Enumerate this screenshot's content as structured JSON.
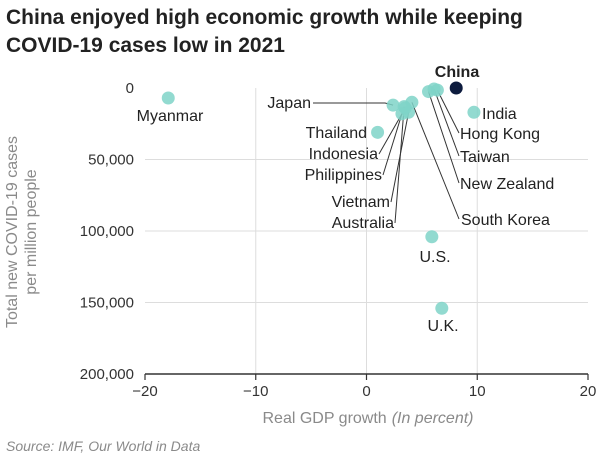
{
  "header": {
    "title_line1": "China enjoyed high economic growth while keeping",
    "title_line2": "COVID-19 cases low in 2021"
  },
  "footer": {
    "source": "Source: IMF, Our World in Data"
  },
  "chart_data": {
    "type": "scatter",
    "title": "China enjoyed high economic growth while keeping COVID-19 cases low in 2021",
    "xlabel": "Real GDP growth",
    "xlabel_note": "(In percent)",
    "ylabel_line1": "Total new COVID-19 cases",
    "ylabel_line2": "per million people",
    "xlim": [
      -20,
      20
    ],
    "ylim": [
      0,
      200000
    ],
    "y_inverted": true,
    "x_ticks": [
      -20,
      -10,
      0,
      10,
      20
    ],
    "x_tick_labels": [
      "−20",
      "−10",
      "0",
      "10",
      "20"
    ],
    "y_ticks": [
      0,
      50000,
      100000,
      150000,
      200000
    ],
    "y_tick_labels": [
      "0",
      "50,000",
      "100,000",
      "150,000",
      "200,000"
    ],
    "grid": true,
    "colors": {
      "point": "#7fd3c8",
      "highlight": "#0d1b3e",
      "grid": "#dddddd",
      "axis": "#333333",
      "leader": "#333333"
    },
    "points": [
      {
        "name": "China",
        "x": 8.1,
        "y": 0,
        "highlight": true
      },
      {
        "name": "Myanmar",
        "x": -17.9,
        "y": 7000
      },
      {
        "name": "India",
        "x": 9.7,
        "y": 17000
      },
      {
        "name": "Hong Kong",
        "x": 6.4,
        "y": 1500
      },
      {
        "name": "Taiwan",
        "x": 6.1,
        "y": 700
      },
      {
        "name": "New Zealand",
        "x": 5.6,
        "y": 2500
      },
      {
        "name": "South Korea",
        "x": 4.1,
        "y": 10000
      },
      {
        "name": "Japan",
        "x": 2.4,
        "y": 12000
      },
      {
        "name": "Thailand",
        "x": 1.0,
        "y": 31000
      },
      {
        "name": "Indonesia",
        "x": 3.5,
        "y": 14000
      },
      {
        "name": "Philippines",
        "x": 3.2,
        "y": 18000
      },
      {
        "name": "Vietnam",
        "x": 3.8,
        "y": 17000
      },
      {
        "name": "Australia",
        "x": 3.4,
        "y": 13000
      },
      {
        "name": "U.S.",
        "x": 5.9,
        "y": 104000
      },
      {
        "name": "U.K.",
        "x": 6.8,
        "y": 154000
      }
    ]
  }
}
